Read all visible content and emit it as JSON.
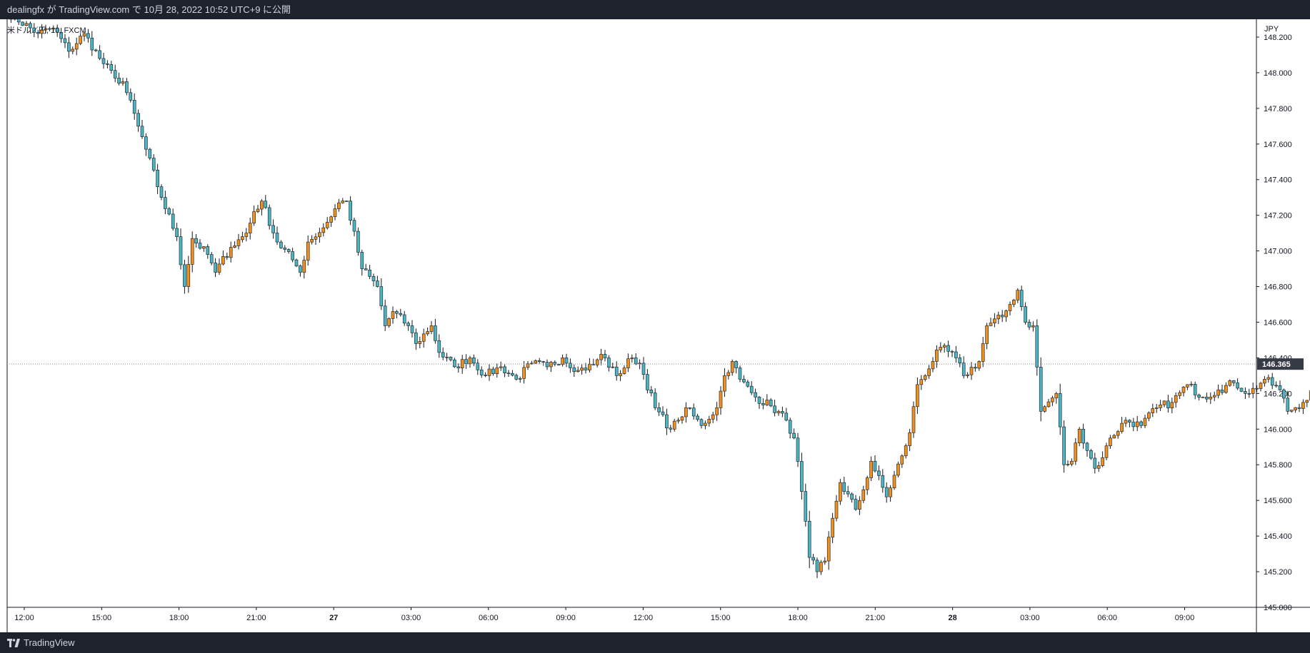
{
  "header": {
    "publish_text": "dealingfx が TradingView.com で 10月 28, 2022 10:52 UTC+9 に公開"
  },
  "symbol_label": "米ドル／円, 10, FXCM",
  "footer": {
    "brand": "TradingView"
  },
  "colors": {
    "up": "#f0911e",
    "down": "#4bb5c1",
    "wick": "#131722",
    "grid_dot": "#8a8f9c",
    "price_box": "#363a45"
  },
  "chart_data": {
    "type": "candlestick",
    "currency_label": "JPY",
    "ylim": [
      145.0,
      148.3
    ],
    "y_ticks": [
      "145.000",
      "145.200",
      "145.400",
      "145.600",
      "145.800",
      "146.000",
      "146.200",
      "146.400",
      "146.600",
      "146.800",
      "147.000",
      "147.200",
      "147.400",
      "147.600",
      "147.800",
      "148.000",
      "148.200"
    ],
    "x_ticks": [
      {
        "label": "12:00",
        "bold": false
      },
      {
        "label": "15:00",
        "bold": false
      },
      {
        "label": "18:00",
        "bold": false
      },
      {
        "label": "21:00",
        "bold": false
      },
      {
        "label": "27",
        "bold": true
      },
      {
        "label": "03:00",
        "bold": false
      },
      {
        "label": "06:00",
        "bold": false
      },
      {
        "label": "09:00",
        "bold": false
      },
      {
        "label": "12:00",
        "bold": false
      },
      {
        "label": "15:00",
        "bold": false
      },
      {
        "label": "18:00",
        "bold": false
      },
      {
        "label": "21:00",
        "bold": false
      },
      {
        "label": "28",
        "bold": true
      },
      {
        "label": "03:00",
        "bold": false
      },
      {
        "label": "06:00",
        "bold": false
      },
      {
        "label": "09:00",
        "bold": false
      }
    ],
    "last_price": "146.365",
    "waypoints": [
      [
        0,
        148.34
      ],
      [
        8,
        148.22
      ],
      [
        12,
        148.25
      ],
      [
        16,
        148.12
      ],
      [
        20,
        148.22
      ],
      [
        24,
        148.08
      ],
      [
        28,
        147.97
      ],
      [
        30,
        147.95
      ],
      [
        34,
        147.7
      ],
      [
        40,
        147.3
      ],
      [
        44,
        147.08
      ],
      [
        46,
        146.8
      ],
      [
        48,
        147.07
      ],
      [
        52,
        146.98
      ],
      [
        54,
        146.88
      ],
      [
        58,
        147.02
      ],
      [
        62,
        147.1
      ],
      [
        64,
        147.22
      ],
      [
        66,
        147.28
      ],
      [
        70,
        147.05
      ],
      [
        74,
        146.95
      ],
      [
        76,
        146.88
      ],
      [
        78,
        147.05
      ],
      [
        82,
        147.13
      ],
      [
        86,
        147.27
      ],
      [
        88,
        147.28
      ],
      [
        92,
        146.9
      ],
      [
        96,
        146.8
      ],
      [
        98,
        146.58
      ],
      [
        100,
        146.66
      ],
      [
        104,
        146.58
      ],
      [
        106,
        146.48
      ],
      [
        110,
        146.58
      ],
      [
        112,
        146.43
      ],
      [
        116,
        146.35
      ],
      [
        120,
        146.4
      ],
      [
        124,
        146.3
      ],
      [
        128,
        146.35
      ],
      [
        132,
        146.28
      ],
      [
        136,
        146.37
      ],
      [
        140,
        146.35
      ],
      [
        144,
        146.4
      ],
      [
        148,
        146.33
      ],
      [
        152,
        146.36
      ],
      [
        154,
        146.42
      ],
      [
        158,
        146.3
      ],
      [
        162,
        146.4
      ],
      [
        164,
        146.37
      ],
      [
        168,
        146.12
      ],
      [
        172,
        146.0
      ],
      [
        174,
        146.05
      ],
      [
        176,
        146.12
      ],
      [
        180,
        146.02
      ],
      [
        184,
        146.12
      ],
      [
        186,
        146.3
      ],
      [
        188,
        146.38
      ],
      [
        190,
        146.28
      ],
      [
        194,
        146.18
      ],
      [
        198,
        146.13
      ],
      [
        202,
        146.05
      ],
      [
        204,
        145.95
      ],
      [
        206,
        145.65
      ],
      [
        208,
        145.28
      ],
      [
        210,
        145.2
      ],
      [
        212,
        145.26
      ],
      [
        214,
        145.5
      ],
      [
        216,
        145.7
      ],
      [
        220,
        145.55
      ],
      [
        222,
        145.66
      ],
      [
        224,
        145.82
      ],
      [
        228,
        145.62
      ],
      [
        232,
        145.85
      ],
      [
        234,
        145.98
      ],
      [
        236,
        146.25
      ],
      [
        240,
        146.38
      ],
      [
        242,
        146.46
      ],
      [
        246,
        146.4
      ],
      [
        248,
        146.3
      ],
      [
        252,
        146.38
      ],
      [
        254,
        146.58
      ],
      [
        258,
        146.63
      ],
      [
        260,
        146.7
      ],
      [
        262,
        146.78
      ],
      [
        264,
        146.6
      ],
      [
        266,
        146.58
      ],
      [
        268,
        146.1
      ],
      [
        272,
        146.2
      ],
      [
        274,
        145.8
      ],
      [
        276,
        145.82
      ],
      [
        278,
        146.0
      ],
      [
        282,
        145.78
      ],
      [
        284,
        145.84
      ],
      [
        286,
        145.95
      ],
      [
        290,
        146.05
      ],
      [
        294,
        146.02
      ],
      [
        298,
        146.12
      ],
      [
        302,
        146.15
      ],
      [
        306,
        146.25
      ],
      [
        310,
        146.18
      ],
      [
        314,
        146.22
      ],
      [
        318,
        146.26
      ],
      [
        322,
        146.2
      ],
      [
        326,
        146.28
      ],
      [
        330,
        146.22
      ],
      [
        332,
        146.1
      ],
      [
        336,
        146.15
      ],
      [
        340,
        146.25
      ],
      [
        342,
        146.32
      ],
      [
        346,
        146.42
      ],
      [
        348,
        146.58
      ],
      [
        350,
        146.62
      ],
      [
        352,
        146.47
      ],
      [
        354,
        146.4
      ],
      [
        355,
        146.365
      ]
    ]
  }
}
